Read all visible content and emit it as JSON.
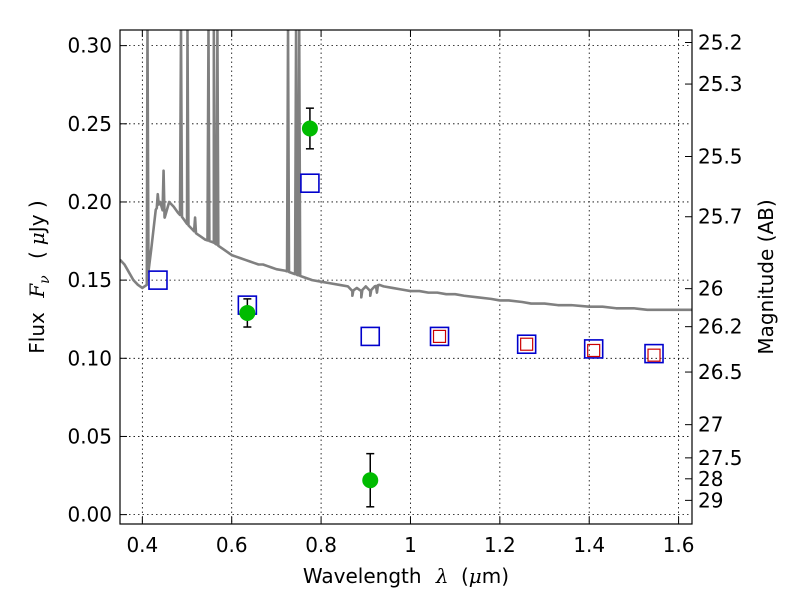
{
  "chart_data": {
    "type": "scatter",
    "xlabel_text": "Wavelength",
    "xlabel_symbol": "λ",
    "xlabel_unit_open": "(",
    "xlabel_unit_mu": "μ",
    "xlabel_unit_rest": "m)",
    "ylabel_text": "Flux",
    "ylabel_symbol": "F",
    "ylabel_subscript": "ν",
    "ylabel_unit_open": "(",
    "ylabel_unit_mu": "μ",
    "ylabel_unit_rest": "Jy )",
    "y2label": "Magnitude (AB)",
    "xlim": [
      0.35,
      1.63
    ],
    "ylim": [
      -0.006,
      0.31
    ],
    "x_ticks": [
      0.4,
      0.6,
      0.8,
      1.0,
      1.2,
      1.4,
      1.6
    ],
    "x_tick_labels": [
      "0.4",
      "0.6",
      "0.8",
      "1",
      "1.2",
      "1.4",
      "1.6"
    ],
    "y_ticks": [
      0.0,
      0.05,
      0.1,
      0.15,
      0.2,
      0.25,
      0.3
    ],
    "y_tick_labels": [
      "0.00",
      "0.05",
      "0.10",
      "0.15",
      "0.20",
      "0.25",
      "0.30"
    ],
    "mag_ticks": [
      25.2,
      25.3,
      25.5,
      25.7,
      26,
      26.2,
      26.5,
      27,
      27.5,
      28,
      29
    ],
    "mag_tick_labels": [
      "25.2",
      "25.3",
      "25.5",
      "25.7",
      "26",
      "26.2",
      "26.5",
      "27",
      "27.5",
      "28",
      "29"
    ],
    "grid": true,
    "colors": {
      "spectrum": "#808080",
      "observed": "#00bb00",
      "model_blue": "#0000cc",
      "model_red": "#cc0000"
    },
    "observed": [
      {
        "x": 0.635,
        "y": 0.129,
        "err": 0.009
      },
      {
        "x": 0.775,
        "y": 0.247,
        "err": 0.013
      },
      {
        "x": 0.91,
        "y": 0.022,
        "err": 0.017
      }
    ],
    "model_blue": [
      {
        "x": 0.435,
        "y": 0.15
      },
      {
        "x": 0.635,
        "y": 0.134
      },
      {
        "x": 0.775,
        "y": 0.212
      },
      {
        "x": 0.91,
        "y": 0.114
      },
      {
        "x": 1.065,
        "y": 0.114
      },
      {
        "x": 1.26,
        "y": 0.109
      },
      {
        "x": 1.41,
        "y": 0.106
      },
      {
        "x": 1.545,
        "y": 0.103
      }
    ],
    "model_red": [
      {
        "x": 1.065,
        "y": 0.114
      },
      {
        "x": 1.26,
        "y": 0.109
      },
      {
        "x": 1.41,
        "y": 0.105
      },
      {
        "x": 1.545,
        "y": 0.102
      }
    ],
    "spectrum": {
      "continuum": [
        [
          0.35,
          0.163
        ],
        [
          0.36,
          0.16
        ],
        [
          0.37,
          0.155
        ],
        [
          0.38,
          0.15
        ],
        [
          0.39,
          0.147
        ],
        [
          0.4,
          0.145
        ],
        [
          0.41,
          0.147
        ],
        [
          0.42,
          0.17
        ],
        [
          0.43,
          0.195
        ],
        [
          0.44,
          0.2
        ],
        [
          0.45,
          0.19
        ],
        [
          0.46,
          0.2
        ],
        [
          0.47,
          0.197
        ],
        [
          0.48,
          0.193
        ],
        [
          0.49,
          0.19
        ],
        [
          0.5,
          0.186
        ],
        [
          0.51,
          0.183
        ],
        [
          0.52,
          0.18
        ],
        [
          0.53,
          0.178
        ],
        [
          0.54,
          0.176
        ],
        [
          0.55,
          0.175
        ],
        [
          0.56,
          0.174
        ],
        [
          0.57,
          0.172
        ],
        [
          0.58,
          0.17
        ],
        [
          0.59,
          0.168
        ],
        [
          0.6,
          0.166
        ],
        [
          0.61,
          0.165
        ],
        [
          0.62,
          0.164
        ],
        [
          0.63,
          0.163
        ],
        [
          0.64,
          0.162
        ],
        [
          0.65,
          0.161
        ],
        [
          0.66,
          0.16
        ],
        [
          0.67,
          0.16
        ],
        [
          0.68,
          0.159
        ],
        [
          0.69,
          0.158
        ],
        [
          0.7,
          0.157
        ],
        [
          0.72,
          0.156
        ],
        [
          0.74,
          0.154
        ],
        [
          0.76,
          0.152
        ],
        [
          0.78,
          0.15
        ],
        [
          0.8,
          0.149
        ],
        [
          0.82,
          0.148
        ],
        [
          0.84,
          0.147
        ],
        [
          0.86,
          0.146
        ],
        [
          0.87,
          0.143
        ],
        [
          0.88,
          0.145
        ],
        [
          0.89,
          0.143
        ],
        [
          0.9,
          0.146
        ],
        [
          0.91,
          0.143
        ],
        [
          0.92,
          0.146
        ],
        [
          0.93,
          0.147
        ],
        [
          0.94,
          0.146
        ],
        [
          0.96,
          0.145
        ],
        [
          0.98,
          0.144
        ],
        [
          1.0,
          0.143
        ],
        [
          1.02,
          0.143
        ],
        [
          1.04,
          0.142
        ],
        [
          1.06,
          0.142
        ],
        [
          1.08,
          0.141
        ],
        [
          1.1,
          0.141
        ],
        [
          1.12,
          0.14
        ],
        [
          1.15,
          0.139
        ],
        [
          1.18,
          0.138
        ],
        [
          1.2,
          0.137
        ],
        [
          1.22,
          0.137
        ],
        [
          1.25,
          0.136
        ],
        [
          1.27,
          0.135
        ],
        [
          1.3,
          0.135
        ],
        [
          1.33,
          0.134
        ],
        [
          1.36,
          0.134
        ],
        [
          1.4,
          0.133
        ],
        [
          1.43,
          0.133
        ],
        [
          1.46,
          0.132
        ],
        [
          1.5,
          0.132
        ],
        [
          1.53,
          0.131
        ],
        [
          1.56,
          0.131
        ],
        [
          1.6,
          0.131
        ],
        [
          1.63,
          0.131
        ]
      ],
      "emission_lines": [
        [
          0.4115,
          0.31
        ],
        [
          0.4345,
          0.205
        ],
        [
          0.4475,
          0.22
        ],
        [
          0.4865,
          0.31
        ],
        [
          0.501,
          0.31
        ],
        [
          0.518,
          0.19
        ],
        [
          0.548,
          0.31
        ],
        [
          0.56,
          0.31
        ],
        [
          0.568,
          0.31
        ],
        [
          0.726,
          0.31
        ],
        [
          0.744,
          0.31
        ],
        [
          0.751,
          0.31
        ]
      ],
      "absorption_lines": [
        [
          0.87,
          0.14
        ],
        [
          0.89,
          0.139
        ],
        [
          0.91,
          0.14
        ],
        [
          0.925,
          0.142
        ]
      ]
    }
  }
}
